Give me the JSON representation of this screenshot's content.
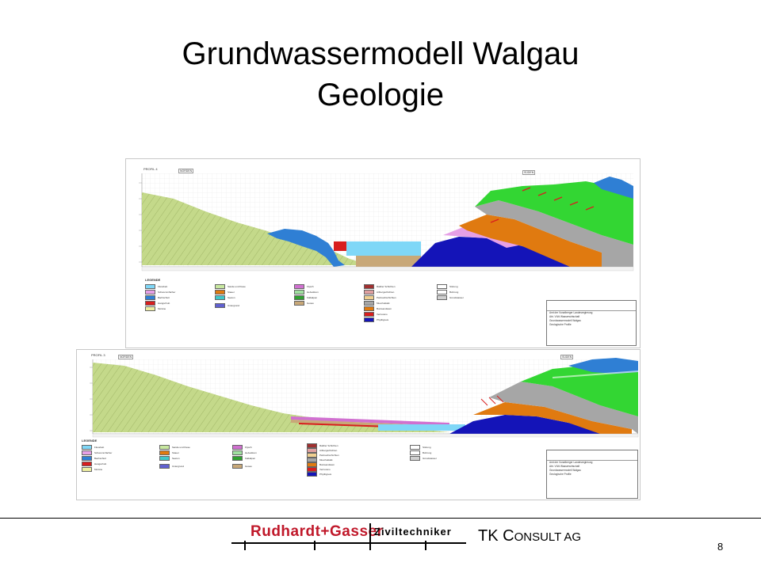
{
  "slide": {
    "title_line1": "Grundwassermodell Walgau",
    "title_line2": "Geologie",
    "page_number": "8"
  },
  "profile_top": {
    "label": "PROFIL 4",
    "north_label": "NORDEN",
    "south_label": "SÜDEN",
    "legend_heading": "LEGENDE"
  },
  "profile_bottom": {
    "label": "PROFIL 3",
    "north_label": "NORDEN",
    "south_label": "SÜDEN",
    "legend_heading": "LEGENDE"
  },
  "title_block": {
    "lines": [
      "Amt der Vorarlberger Landesregierung",
      "Abt. VII/d Wasserwirtschaft",
      "Grundwassermodell Walgau",
      "Geologische Profile"
    ]
  },
  "legend": {
    "col1": [
      "Flussbett",
      "Schwemmfächer",
      "Bachschutt",
      "Hangschutt",
      "Moräne"
    ],
    "col2": [
      "Sande und Kiese",
      "Stauer",
      "Seeton",
      "Untergrund"
    ],
    "col3": [
      "Flysch",
      "Helvetikum",
      "Kalkalpen",
      "Gosau"
    ],
    "col4": [
      "Raibler Schichten",
      "Arlbergschichten",
      "Partnachschichten",
      "Muschelkalk",
      "Buntsandstein",
      "Verrucano",
      "Phyllitgneis"
    ],
    "col5": [
      "Störung",
      "Bohrung",
      "Grundwasser"
    ]
  },
  "colors": {
    "flysch_olive": "#c4d98a",
    "limestone_blue": "#2f7fd4",
    "green": "#33d633",
    "gray": "#a6a6a6",
    "orange": "#e07a10",
    "navy": "#1414b8",
    "pink": "#e6a0e6",
    "water": "#7fd7f7",
    "brown": "#c8a878",
    "red": "#d81e1e",
    "rudhardt_red": "#c0182a"
  },
  "logos": {
    "rudhardt_gasser": "Rudhardt+Gasser",
    "ziviltechniker": "Ziviltechniker",
    "tk_consult_t": "TK C",
    "tk_consult_rest": "ONSULT AG"
  }
}
